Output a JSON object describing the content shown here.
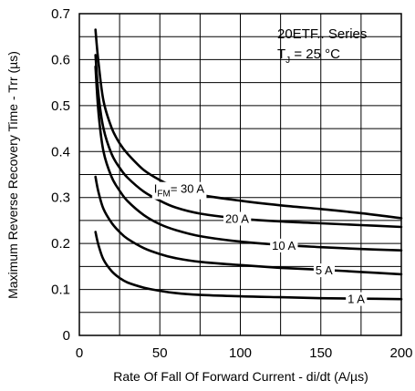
{
  "chart_data": {
    "type": "line",
    "title": "",
    "xlabel": "Rate Of Fall Of Forward Current - di/dt (A/µs)",
    "ylabel": "Maximum Reverse Recovery Time - Trr (µs)",
    "xlim": [
      0,
      200
    ],
    "ylim": [
      0,
      0.7
    ],
    "x_ticks": [
      0,
      50,
      100,
      150,
      200
    ],
    "y_ticks": [
      0,
      0.1,
      0.2,
      0.3,
      0.4,
      0.5,
      0.6,
      0.7
    ],
    "x_tick_labels": [
      "0",
      "50",
      "100",
      "150",
      "200"
    ],
    "y_tick_labels": [
      "0",
      "0.1",
      "0.2",
      "0.3",
      "0.4",
      "0.5",
      "0.6",
      "0.7"
    ],
    "grid": true,
    "annotation": {
      "series_name": "20ETF.. Series",
      "tj_label": "T",
      "tj_sub": "J",
      "tj_value": " = 25 °C"
    },
    "series": [
      {
        "name": "I FM = 30 A",
        "label_main": "I",
        "label_sub": "FM",
        "label_rest": "= 30 A",
        "x": [
          10,
          12,
          15,
          20,
          25,
          30,
          40,
          50,
          60,
          75,
          100,
          125,
          150,
          175,
          200
        ],
        "y": [
          0.665,
          0.59,
          0.51,
          0.452,
          0.418,
          0.395,
          0.36,
          0.338,
          0.322,
          0.306,
          0.293,
          0.283,
          0.275,
          0.266,
          0.255
        ]
      },
      {
        "name": "20 A",
        "label_main": "20 A",
        "x": [
          10,
          12,
          15,
          20,
          25,
          30,
          40,
          50,
          60,
          75,
          100,
          125,
          150,
          175,
          200
        ],
        "y": [
          0.61,
          0.52,
          0.45,
          0.395,
          0.365,
          0.343,
          0.313,
          0.293,
          0.278,
          0.265,
          0.254,
          0.248,
          0.244,
          0.24,
          0.236
        ]
      },
      {
        "name": "10 A",
        "label_main": "10 A",
        "x": [
          10,
          12,
          15,
          20,
          25,
          30,
          40,
          50,
          60,
          75,
          100,
          125,
          150,
          175,
          200
        ],
        "y": [
          0.585,
          0.48,
          0.4,
          0.345,
          0.315,
          0.292,
          0.262,
          0.242,
          0.229,
          0.216,
          0.204,
          0.197,
          0.192,
          0.188,
          0.185
        ]
      },
      {
        "name": "5 A",
        "label_main": "5 A",
        "x": [
          10,
          12,
          15,
          20,
          25,
          30,
          40,
          50,
          60,
          75,
          100,
          125,
          150,
          175,
          200
        ],
        "y": [
          0.345,
          0.31,
          0.275,
          0.245,
          0.225,
          0.21,
          0.19,
          0.177,
          0.168,
          0.16,
          0.153,
          0.147,
          0.143,
          0.138,
          0.133
        ]
      },
      {
        "name": "1 A",
        "label_main": "1 A",
        "x": [
          10,
          12,
          15,
          20,
          25,
          30,
          40,
          50,
          60,
          75,
          100,
          125,
          150,
          175,
          200
        ],
        "y": [
          0.225,
          0.195,
          0.165,
          0.14,
          0.125,
          0.115,
          0.104,
          0.097,
          0.092,
          0.088,
          0.085,
          0.083,
          0.081,
          0.08,
          0.079
        ]
      }
    ]
  }
}
